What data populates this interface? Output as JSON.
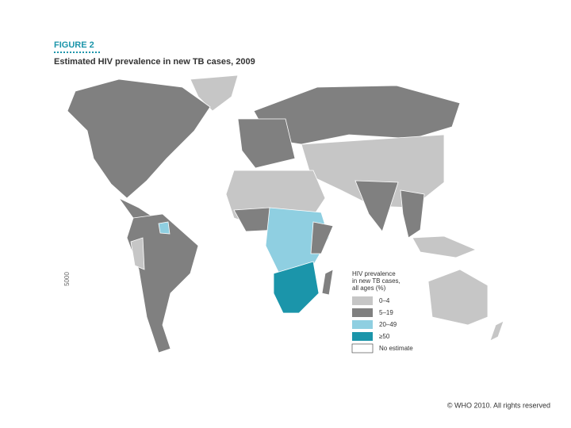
{
  "figure_label": "FIGURE 2",
  "title": "Estimated HIV prevalence in new TB cases, 2009",
  "side_label": "5000",
  "legend": {
    "title": [
      "HIV prevalence",
      "in new TB cases,",
      "all ages (%)"
    ],
    "items": [
      {
        "label": "0–4",
        "color": "#c6c6c6"
      },
      {
        "label": "5–19",
        "color": "#808080"
      },
      {
        "label": "20–49",
        "color": "#8fcfe1"
      },
      {
        "label": "≥50",
        "color": "#1b95aa"
      },
      {
        "label": "No estimate",
        "color": "#ffffff"
      }
    ]
  },
  "copyright": "© WHO 2010. All rights reserved"
}
